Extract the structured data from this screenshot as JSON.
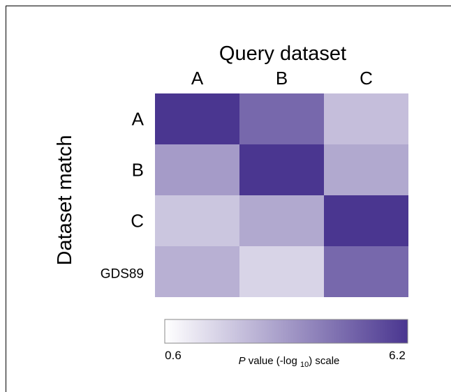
{
  "chart_data": {
    "type": "heatmap",
    "title": "Query dataset",
    "xlabel": "Query dataset",
    "ylabel": "Dataset match",
    "x_categories": [
      "A",
      "B",
      "C"
    ],
    "y_categories": [
      "A",
      "B",
      "C",
      "GDS89"
    ],
    "values": [
      [
        6.2,
        4.8,
        2.4
      ],
      [
        3.4,
        6.2,
        3.0
      ],
      [
        2.2,
        3.0,
        6.2
      ],
      [
        2.8,
        1.8,
        4.8
      ]
    ],
    "colorbar": {
      "min": 0.6,
      "max": 6.2,
      "min_label": "0.6",
      "max_label": "6.2",
      "label_prefix": "P",
      "label_middle": " value (-log ",
      "label_sub": "10",
      "label_suffix": ") scale",
      "color_low": "#ffffff",
      "color_high": "#4a3690"
    }
  }
}
